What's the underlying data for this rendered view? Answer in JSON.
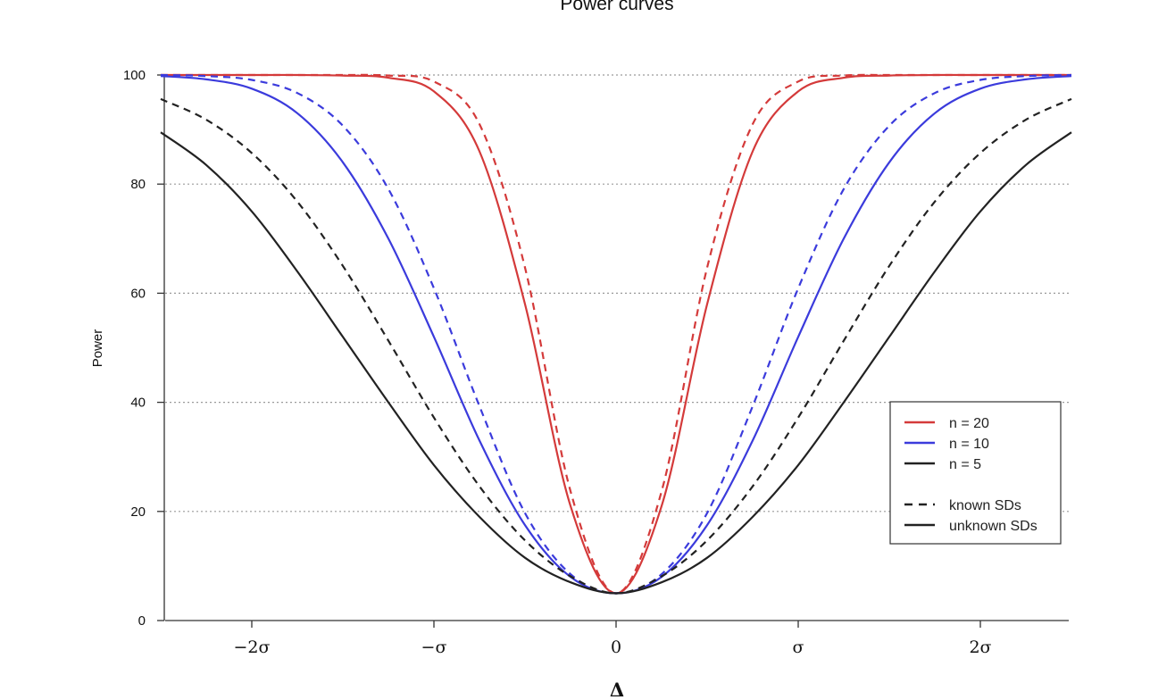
{
  "chart_data": {
    "type": "line",
    "title": "Power curves",
    "xlabel": "Δ",
    "ylabel": "Power",
    "xlim": [
      -2.6,
      2.6
    ],
    "ylim": [
      0,
      100
    ],
    "x_ticks": [
      {
        "value": -2,
        "label": "−2σ"
      },
      {
        "value": -1,
        "label": "−σ"
      },
      {
        "value": 0,
        "label": "0"
      },
      {
        "value": 1,
        "label": "σ"
      },
      {
        "value": 2,
        "label": "2σ"
      }
    ],
    "y_ticks": [
      0,
      20,
      40,
      60,
      80,
      100
    ],
    "grid": "horizontal dotted",
    "legend_position": "right",
    "x_units": "σ",
    "x": [
      -2.5,
      -2.25,
      -2.0,
      -1.75,
      -1.5,
      -1.25,
      -1.0,
      -0.75,
      -0.5,
      -0.25,
      0.0,
      0.25,
      0.5,
      0.75,
      1.0,
      1.25,
      1.5,
      1.75,
      2.0,
      2.25,
      2.5
    ],
    "series": [
      {
        "color": "#d43a3a",
        "style": "dashed",
        "values": [
          100,
          100,
          100,
          100,
          100,
          99.9,
          98.8,
          91.0,
          64.7,
          23.7,
          5.0,
          23.7,
          64.7,
          91.0,
          98.8,
          99.9,
          100,
          100,
          100,
          100,
          100
        ]
      },
      {
        "color": "#d43a3a",
        "style": "solid",
        "values": [
          100,
          100,
          100,
          100,
          99.9,
          99.5,
          97.0,
          86.0,
          58.0,
          21.0,
          5.0,
          21.0,
          58.0,
          86.0,
          97.0,
          99.5,
          99.9,
          100,
          100,
          100,
          100
        ]
      },
      {
        "color": "#3b3bdc",
        "style": "dashed",
        "values": [
          100,
          99.8,
          99.1,
          96.7,
          90.7,
          79.1,
          60.9,
          39.3,
          19.7,
          8.5,
          5.0,
          8.5,
          19.7,
          39.3,
          60.9,
          79.1,
          90.7,
          96.7,
          99.1,
          99.8,
          100
        ]
      },
      {
        "color": "#3b3bdc",
        "style": "solid",
        "values": [
          99.8,
          99.2,
          97.5,
          93.0,
          84.0,
          70.0,
          52.0,
          33.0,
          17.5,
          8.0,
          5.0,
          8.0,
          17.5,
          33.0,
          52.0,
          70.0,
          84.0,
          93.0,
          97.5,
          99.2,
          99.8
        ]
      },
      {
        "color": "#222222",
        "style": "dashed",
        "values": [
          95.6,
          91.8,
          85.7,
          76.8,
          65.0,
          51.3,
          37.2,
          24.6,
          14.7,
          8.1,
          5.0,
          8.1,
          14.7,
          24.6,
          37.2,
          51.3,
          65.0,
          76.8,
          85.7,
          91.8,
          95.6
        ]
      },
      {
        "color": "#222222",
        "style": "solid",
        "values": [
          89.5,
          83.5,
          75.0,
          64.0,
          52.0,
          40.0,
          28.5,
          19.0,
          11.5,
          7.0,
          5.0,
          7.0,
          11.5,
          19.0,
          28.5,
          40.0,
          52.0,
          64.0,
          75.0,
          83.5,
          89.5
        ]
      }
    ],
    "legend": {
      "colors": [
        {
          "label": "n = 20",
          "color": "#d43a3a"
        },
        {
          "label": "n = 10",
          "color": "#3b3bdc"
        },
        {
          "label": "n = 5",
          "color": "#222222"
        }
      ],
      "styles": [
        {
          "label": "known SDs",
          "style": "dashed"
        },
        {
          "label": "unknown SDs",
          "style": "solid"
        }
      ]
    }
  }
}
